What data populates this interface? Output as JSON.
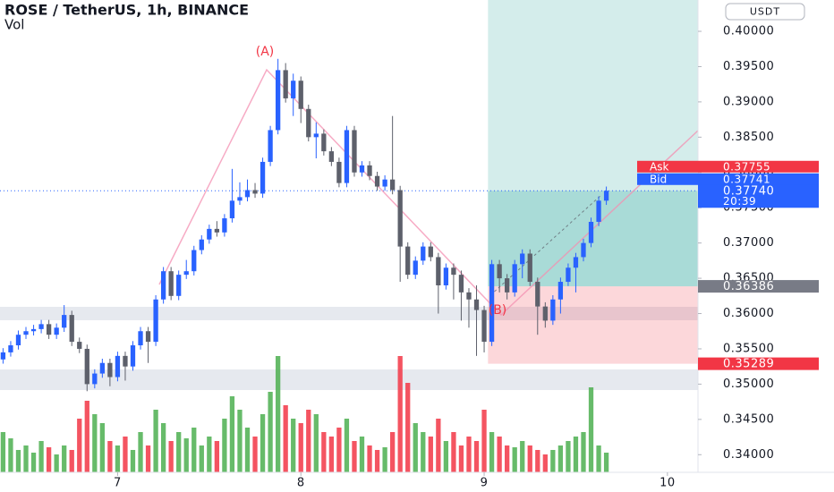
{
  "chart_data": {
    "type": "candlestick",
    "title": "ROSE / TetherUS, 1h, BINANCE",
    "volume_label": "Vol",
    "currency": "USDT",
    "annotations": [
      "(A)",
      "(B)"
    ],
    "up_color": "#2962ff",
    "down_color": "#5d606b",
    "volume_up_color": "#4caf50",
    "volume_down_color": "#f23645",
    "xlim": [
      -0.4,
      91
    ],
    "xticks": [
      {
        "value": 15,
        "label": "7"
      },
      {
        "value": 39,
        "label": "8"
      },
      {
        "value": 63,
        "label": "9"
      },
      {
        "value": 87,
        "label": "10"
      }
    ],
    "ylim": [
      0.3375,
      0.40444
    ],
    "yticks": [
      {
        "value": 0.4,
        "label": "0.40000"
      },
      {
        "value": 0.395,
        "label": "0.39500"
      },
      {
        "value": 0.39,
        "label": "0.39000"
      },
      {
        "value": 0.385,
        "label": "0.38500"
      },
      {
        "value": 0.38,
        "label": "0.38000"
      },
      {
        "value": 0.375,
        "label": "0.37500"
      },
      {
        "value": 0.37,
        "label": "0.37000"
      },
      {
        "value": 0.365,
        "label": "0.36500"
      },
      {
        "value": 0.36,
        "label": "0.36000"
      },
      {
        "value": 0.355,
        "label": "0.35500"
      },
      {
        "value": 0.35,
        "label": "0.35000"
      },
      {
        "value": 0.345,
        "label": "0.34500"
      },
      {
        "value": 0.34,
        "label": "0.34000"
      }
    ],
    "price_tags": [
      {
        "name": "Ask",
        "value": 0.37755,
        "label": "0.37755",
        "color": "#f23645"
      },
      {
        "name": "Bid",
        "value": 0.37741,
        "label": "0.37741",
        "color": "#2962ff"
      },
      {
        "value": 0.3774,
        "label": "0.37740",
        "countdown": "20:39",
        "color": "#2962ff"
      },
      {
        "value": 0.36386,
        "label": "0.36386",
        "color": "#787b86"
      },
      {
        "value": 0.35289,
        "label": "0.35289",
        "color": "#f23645"
      }
    ],
    "candles": [
      [
        0.3535,
        0.3551,
        0.3529,
        0.3545
      ],
      [
        0.3545,
        0.3561,
        0.3539,
        0.3555
      ],
      [
        0.3555,
        0.3576,
        0.3549,
        0.357
      ],
      [
        0.357,
        0.3581,
        0.3564,
        0.3575
      ],
      [
        0.3575,
        0.3584,
        0.3569,
        0.3578
      ],
      [
        0.3578,
        0.3591,
        0.3572,
        0.3585
      ],
      [
        0.3585,
        0.3591,
        0.3564,
        0.357
      ],
      [
        0.357,
        0.3586,
        0.3564,
        0.358
      ],
      [
        0.358,
        0.3612,
        0.3574,
        0.3598
      ],
      [
        0.3598,
        0.3604,
        0.3554,
        0.356
      ],
      [
        0.356,
        0.3566,
        0.3544,
        0.355
      ],
      [
        0.355,
        0.3556,
        0.349,
        0.35
      ],
      [
        0.35,
        0.3521,
        0.3494,
        0.3515
      ],
      [
        0.3515,
        0.3536,
        0.3509,
        0.353
      ],
      [
        0.353,
        0.3536,
        0.3497,
        0.351
      ],
      [
        0.351,
        0.3546,
        0.3504,
        0.354
      ],
      [
        0.354,
        0.3546,
        0.3505,
        0.3525
      ],
      [
        0.3525,
        0.3561,
        0.3519,
        0.3555
      ],
      [
        0.3555,
        0.3581,
        0.3549,
        0.3575
      ],
      [
        0.3575,
        0.3581,
        0.353,
        0.356
      ],
      [
        0.356,
        0.3626,
        0.3554,
        0.362
      ],
      [
        0.362,
        0.3666,
        0.3614,
        0.366
      ],
      [
        0.366,
        0.3666,
        0.3619,
        0.3625
      ],
      [
        0.3625,
        0.3661,
        0.3619,
        0.3655
      ],
      [
        0.3655,
        0.3676,
        0.3649,
        0.366
      ],
      [
        0.366,
        0.3696,
        0.3654,
        0.369
      ],
      [
        0.369,
        0.3711,
        0.3684,
        0.3705
      ],
      [
        0.3705,
        0.3726,
        0.3699,
        0.372
      ],
      [
        0.372,
        0.3731,
        0.3709,
        0.3715
      ],
      [
        0.3715,
        0.3741,
        0.3709,
        0.3735
      ],
      [
        0.3735,
        0.3805,
        0.3729,
        0.376
      ],
      [
        0.376,
        0.3786,
        0.3754,
        0.3765
      ],
      [
        0.3765,
        0.379,
        0.3759,
        0.3775
      ],
      [
        0.3775,
        0.3785,
        0.3764,
        0.377
      ],
      [
        0.377,
        0.3821,
        0.3764,
        0.3815
      ],
      [
        0.3815,
        0.3866,
        0.3809,
        0.386
      ],
      [
        0.386,
        0.3961,
        0.3854,
        0.3945
      ],
      [
        0.3945,
        0.3955,
        0.3899,
        0.3905
      ],
      [
        0.3905,
        0.394,
        0.388,
        0.393
      ],
      [
        0.393,
        0.3936,
        0.387,
        0.389
      ],
      [
        0.389,
        0.3896,
        0.3844,
        0.385
      ],
      [
        0.385,
        0.3871,
        0.382,
        0.3855
      ],
      [
        0.3855,
        0.3861,
        0.3824,
        0.383
      ],
      [
        0.383,
        0.3836,
        0.3809,
        0.3815
      ],
      [
        0.3815,
        0.3821,
        0.3779,
        0.3785
      ],
      [
        0.3785,
        0.3866,
        0.3779,
        0.386
      ],
      [
        0.386,
        0.3866,
        0.3794,
        0.38
      ],
      [
        0.38,
        0.3816,
        0.3794,
        0.381
      ],
      [
        0.381,
        0.3816,
        0.3789,
        0.3795
      ],
      [
        0.3795,
        0.3801,
        0.3774,
        0.378
      ],
      [
        0.378,
        0.3796,
        0.3774,
        0.379
      ],
      [
        0.379,
        0.388,
        0.3769,
        0.3775
      ],
      [
        0.3775,
        0.3781,
        0.3645,
        0.3695
      ],
      [
        0.3695,
        0.3701,
        0.3649,
        0.3655
      ],
      [
        0.3655,
        0.3681,
        0.3649,
        0.3675
      ],
      [
        0.3675,
        0.3701,
        0.3669,
        0.3695
      ],
      [
        0.3695,
        0.3701,
        0.3674,
        0.368
      ],
      [
        0.368,
        0.3686,
        0.36,
        0.364
      ],
      [
        0.364,
        0.3671,
        0.3634,
        0.3665
      ],
      [
        0.3665,
        0.3671,
        0.362,
        0.3655
      ],
      [
        0.3655,
        0.3661,
        0.359,
        0.363
      ],
      [
        0.363,
        0.3636,
        0.358,
        0.362
      ],
      [
        0.362,
        0.364,
        0.354,
        0.3605
      ],
      [
        0.3605,
        0.3611,
        0.3545,
        0.356
      ],
      [
        0.356,
        0.3676,
        0.3554,
        0.367
      ],
      [
        0.367,
        0.3676,
        0.363,
        0.365
      ],
      [
        0.365,
        0.3656,
        0.362,
        0.363
      ],
      [
        0.363,
        0.3676,
        0.3624,
        0.367
      ],
      [
        0.367,
        0.3691,
        0.365,
        0.3685
      ],
      [
        0.3685,
        0.3691,
        0.3639,
        0.3645
      ],
      [
        0.3645,
        0.3651,
        0.357,
        0.361
      ],
      [
        0.361,
        0.3616,
        0.358,
        0.359
      ],
      [
        0.359,
        0.3626,
        0.3584,
        0.362
      ],
      [
        0.362,
        0.3651,
        0.36,
        0.3645
      ],
      [
        0.3645,
        0.3671,
        0.3639,
        0.3665
      ],
      [
        0.3665,
        0.3686,
        0.363,
        0.368
      ],
      [
        0.368,
        0.3706,
        0.3674,
        0.37
      ],
      [
        0.37,
        0.3736,
        0.3694,
        0.373
      ],
      [
        0.373,
        0.3766,
        0.3724,
        0.376
      ],
      [
        0.376,
        0.378,
        0.3754,
        0.3774
      ]
    ],
    "volume": [
      45,
      38,
      25,
      30,
      22,
      35,
      28,
      20,
      30,
      25,
      60,
      80,
      65,
      55,
      35,
      30,
      40,
      25,
      45,
      30,
      70,
      55,
      35,
      45,
      38,
      50,
      30,
      40,
      35,
      60,
      85,
      70,
      50,
      40,
      65,
      90,
      130,
      75,
      60,
      55,
      70,
      65,
      45,
      40,
      50,
      60,
      35,
      40,
      30,
      25,
      28,
      45,
      130,
      100,
      55,
      45,
      40,
      60,
      35,
      45,
      30,
      40,
      35,
      70,
      45,
      40,
      30,
      28,
      35,
      30,
      25,
      20,
      25,
      30,
      35,
      40,
      45,
      95,
      30,
      22
    ]
  }
}
